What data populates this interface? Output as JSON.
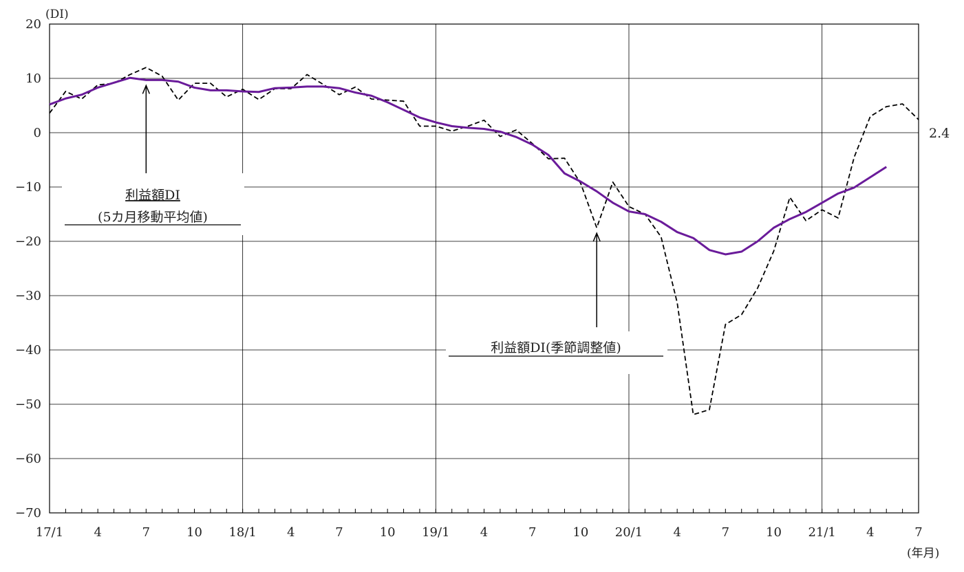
{
  "chart_data": {
    "type": "line",
    "y_unit_label": "(DI)",
    "x_unit_label": "(年月)",
    "ylim": [
      -70,
      20
    ],
    "yticks": [
      20,
      10,
      0,
      -10,
      -20,
      -30,
      -40,
      -50,
      -60,
      -70
    ],
    "x_tick_labels": [
      "17/1",
      "4",
      "7",
      "10",
      "18/1",
      "4",
      "7",
      "10",
      "19/1",
      "4",
      "7",
      "10",
      "20/1",
      "4",
      "7",
      "10",
      "21/1",
      "4",
      "7"
    ],
    "x_tick_months": [
      0,
      3,
      6,
      9,
      12,
      15,
      18,
      21,
      24,
      27,
      30,
      33,
      36,
      39,
      42,
      45,
      48,
      51,
      54
    ],
    "grid": true,
    "series": [
      {
        "name": "利益額DI(季節調整値)",
        "style": "dashed",
        "color": "#000000",
        "x_months": [
          0,
          1,
          2,
          3,
          4,
          5,
          6,
          7,
          8,
          9,
          10,
          11,
          12,
          13,
          14,
          15,
          16,
          17,
          18,
          19,
          20,
          21,
          22,
          23,
          24,
          25,
          26,
          27,
          28,
          29,
          30,
          31,
          32,
          33,
          34,
          35,
          36,
          37,
          38,
          39,
          40,
          41,
          42,
          43,
          44,
          45,
          46,
          47,
          48,
          49,
          50,
          51,
          52,
          53,
          54
        ],
        "values": [
          3.6,
          7.6,
          6.2,
          8.8,
          9.1,
          10.7,
          12.0,
          10.4,
          6.0,
          9.1,
          9.1,
          6.6,
          8.0,
          6.1,
          8.1,
          8.1,
          10.7,
          8.9,
          7.0,
          8.4,
          6.2,
          6.0,
          5.8,
          1.2,
          1.2,
          0.3,
          1.2,
          2.3,
          -0.7,
          0.5,
          -2.0,
          -4.8,
          -4.7,
          -9.3,
          -17.5,
          -9.1,
          -13.6,
          -15.0,
          -19.2,
          -31.3,
          -51.9,
          -51.0,
          -35.3,
          -33.5,
          -28.6,
          -21.8,
          -11.9,
          -16.2,
          -14.2,
          -15.7,
          -4.5,
          3.0,
          4.8,
          5.3,
          2.4
        ]
      },
      {
        "name": "利益額DI(5カ月移動平均値)",
        "style": "solid",
        "color": "#6a1b9a",
        "x_months": [
          0,
          1,
          2,
          3,
          4,
          5,
          6,
          7,
          8,
          9,
          10,
          11,
          12,
          13,
          14,
          15,
          16,
          17,
          18,
          19,
          20,
          21,
          22,
          23,
          24,
          25,
          26,
          27,
          28,
          29,
          30,
          31,
          32,
          33,
          34,
          35,
          36,
          37,
          38,
          39,
          40,
          41,
          42,
          43,
          44,
          45,
          46,
          47,
          48,
          49,
          50,
          51,
          52
        ],
        "values": [
          5.2,
          6.3,
          7.0,
          8.3,
          9.2,
          10.1,
          9.7,
          9.7,
          9.4,
          8.3,
          7.8,
          7.8,
          7.6,
          7.5,
          8.2,
          8.3,
          8.5,
          8.5,
          8.2,
          7.4,
          6.8,
          5.6,
          4.2,
          2.8,
          1.9,
          1.2,
          0.9,
          0.7,
          0.2,
          -0.8,
          -2.2,
          -4.1,
          -7.5,
          -9.0,
          -10.8,
          -12.9,
          -14.5,
          -15.0,
          -16.4,
          -18.3,
          -19.4,
          -21.6,
          -22.4,
          -21.9,
          -20.0,
          -17.5,
          -15.9,
          -14.6,
          -12.9,
          -11.2,
          -10.1,
          -8.2,
          -6.3
        ]
      }
    ],
    "annotations": [
      {
        "text_line1": "利益額DI",
        "text_line2": "(5カ月移動平均値)",
        "target_series": "moving_average",
        "target_month": 6
      },
      {
        "text_line1": "利益額DI(季節調整値)",
        "target_series": "seasonally_adjusted",
        "target_month": 34
      }
    ],
    "last_value_label": "2.4"
  }
}
